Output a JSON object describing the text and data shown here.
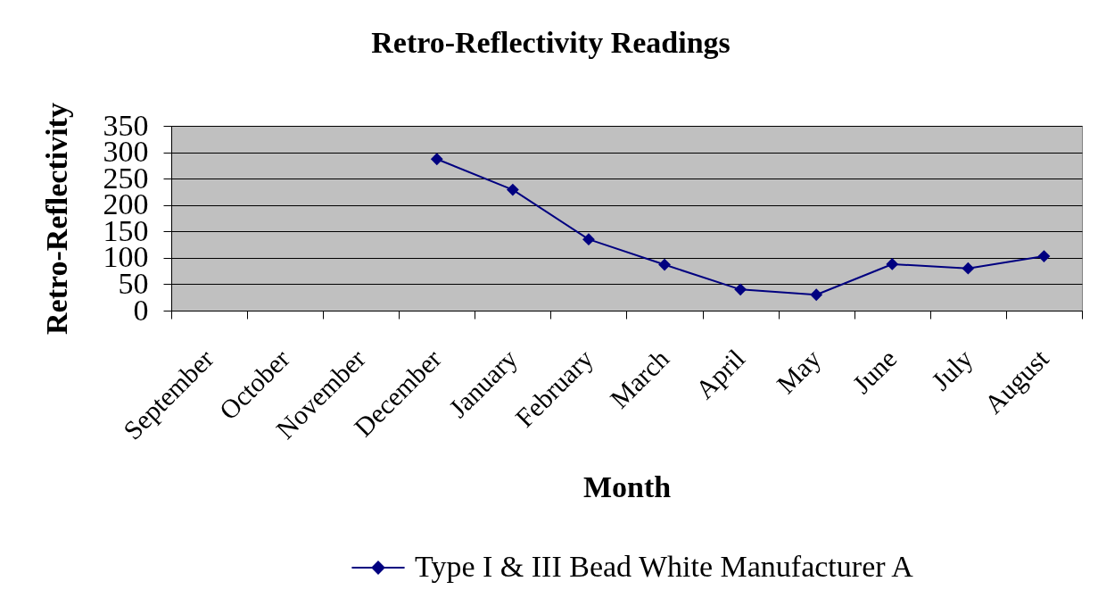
{
  "chart_data": {
    "type": "line",
    "title": "Retro-Reflectivity Readings",
    "xlabel": "Month",
    "ylabel": "Retro-Reflectivity",
    "categories": [
      "September",
      "October",
      "November",
      "December",
      "January",
      "February",
      "March",
      "April",
      "May",
      "June",
      "July",
      "August"
    ],
    "series": [
      {
        "name": "Type I & III Bead White Manufacturer A",
        "color": "#000080",
        "values": [
          null,
          null,
          null,
          287,
          229,
          135,
          87,
          40,
          30,
          88,
          80,
          103
        ]
      }
    ],
    "ylim": [
      0,
      350
    ],
    "yticks": [
      0,
      50,
      100,
      150,
      200,
      250,
      300,
      350
    ],
    "grid": "y",
    "legend": "bottom",
    "marker": "diamond",
    "line_style": "solid"
  }
}
